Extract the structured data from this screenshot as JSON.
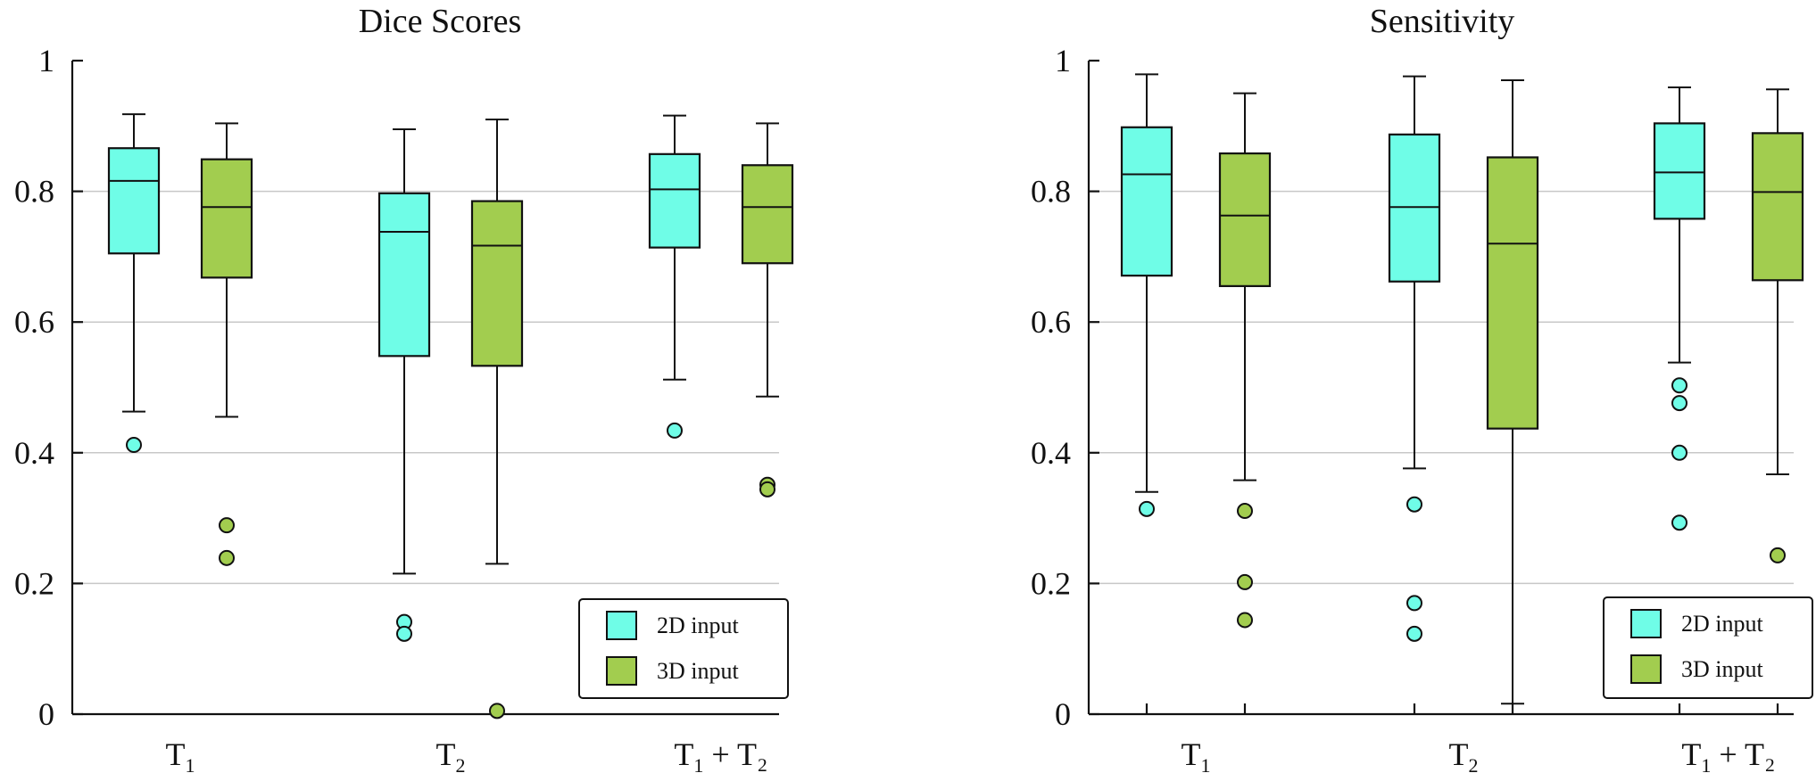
{
  "chart_data": [
    {
      "type": "box",
      "title": "Dice Scores",
      "ylim": [
        0,
        1
      ],
      "yticks": [
        0,
        0.2,
        0.4,
        0.6,
        0.8,
        1
      ],
      "ytick_labels": [
        "0",
        "0.2",
        "0.4",
        "0.6",
        "0.8",
        "1"
      ],
      "grid": true,
      "legend_position": "bottom-right",
      "categories": [
        {
          "main": "T",
          "sub": "1",
          "tail": ""
        },
        {
          "main": "T",
          "sub": "2",
          "tail": ""
        },
        {
          "main": "T",
          "sub": "1",
          "tail": " + T₂"
        }
      ],
      "series": [
        {
          "name": "2D input",
          "color": "#6ffde7",
          "boxes": [
            {
              "whisker_low": 0.463,
              "q1": 0.705,
              "median": 0.816,
              "q3": 0.866,
              "whisker_high": 0.918,
              "outliers": [
                0.412
              ]
            },
            {
              "whisker_low": 0.215,
              "q1": 0.548,
              "median": 0.738,
              "q3": 0.797,
              "whisker_high": 0.895,
              "outliers": [
                0.141,
                0.123
              ]
            },
            {
              "whisker_low": 0.512,
              "q1": 0.714,
              "median": 0.803,
              "q3": 0.857,
              "whisker_high": 0.916,
              "outliers": [
                0.434
              ]
            }
          ]
        },
        {
          "name": "3D input",
          "color": "#a2cd4f",
          "boxes": [
            {
              "whisker_low": 0.455,
              "q1": 0.668,
              "median": 0.776,
              "q3": 0.849,
              "whisker_high": 0.904,
              "outliers": [
                0.289,
                0.239
              ]
            },
            {
              "whisker_low": 0.23,
              "q1": 0.533,
              "median": 0.717,
              "q3": 0.785,
              "whisker_high": 0.91,
              "outliers": [
                0.005
              ]
            },
            {
              "whisker_low": 0.486,
              "q1": 0.69,
              "median": 0.776,
              "q3": 0.84,
              "whisker_high": 0.904,
              "outliers": [
                0.351,
                0.344
              ]
            }
          ]
        }
      ]
    },
    {
      "type": "box",
      "title": "Sensitivity",
      "ylim": [
        0,
        1
      ],
      "yticks": [
        0,
        0.2,
        0.4,
        0.6,
        0.8,
        1
      ],
      "ytick_labels": [
        "0",
        "0.2",
        "0.4",
        "0.6",
        "0.8",
        "1"
      ],
      "grid": true,
      "legend_position": "bottom-right",
      "categories": [
        {
          "main": "T",
          "sub": "1",
          "tail": ""
        },
        {
          "main": "T",
          "sub": "2",
          "tail": ""
        },
        {
          "main": "T",
          "sub": "1",
          "tail": " + T₂"
        }
      ],
      "series": [
        {
          "name": "2D input",
          "color": "#6ffde7",
          "boxes": [
            {
              "whisker_low": 0.34,
              "q1": 0.671,
              "median": 0.826,
              "q3": 0.898,
              "whisker_high": 0.979,
              "outliers": [
                0.314
              ]
            },
            {
              "whisker_low": 0.376,
              "q1": 0.662,
              "median": 0.776,
              "q3": 0.887,
              "whisker_high": 0.976,
              "outliers": [
                0.321,
                0.17,
                0.123
              ]
            },
            {
              "whisker_low": 0.538,
              "q1": 0.758,
              "median": 0.829,
              "q3": 0.904,
              "whisker_high": 0.959,
              "outliers": [
                0.503,
                0.476,
                0.4,
                0.293
              ]
            }
          ]
        },
        {
          "name": "3D input",
          "color": "#a2cd4f",
          "boxes": [
            {
              "whisker_low": 0.358,
              "q1": 0.655,
              "median": 0.763,
              "q3": 0.858,
              "whisker_high": 0.95,
              "outliers": [
                0.311,
                0.202,
                0.144
              ]
            },
            {
              "whisker_low": 0.016,
              "q1": 0.437,
              "median": 0.72,
              "q3": 0.852,
              "whisker_high": 0.97,
              "outliers": []
            },
            {
              "whisker_low": 0.367,
              "q1": 0.664,
              "median": 0.799,
              "q3": 0.889,
              "whisker_high": 0.956,
              "outliers": [
                0.243
              ]
            }
          ]
        }
      ]
    }
  ]
}
